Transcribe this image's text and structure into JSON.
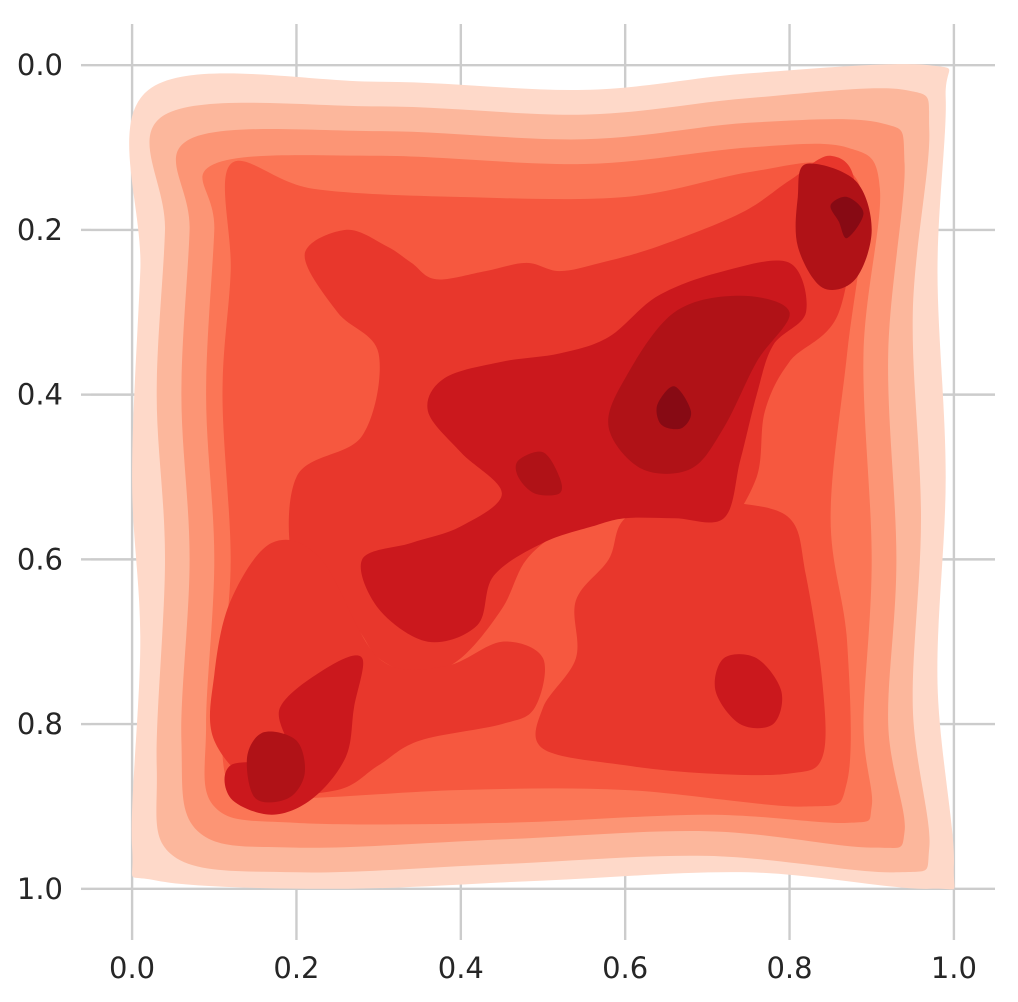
{
  "chart_data": {
    "type": "kde-filled-contour",
    "title": "",
    "xlabel": "",
    "ylabel": "",
    "xlim": [
      -0.05,
      1.05
    ],
    "ylim": [
      1.05,
      -0.05
    ],
    "y_inverted": true,
    "grid": true,
    "colormap": "Reds",
    "x_ticks": [
      0.0,
      0.2,
      0.4,
      0.6,
      0.8,
      1.0
    ],
    "x_tick_labels": [
      "0.0",
      "0.2",
      "0.4",
      "0.6",
      "0.8",
      "1.0"
    ],
    "y_ticks": [
      0.0,
      0.2,
      0.4,
      0.6,
      0.8,
      1.0
    ],
    "y_tick_labels": [
      "0.0",
      "0.2",
      "0.4",
      "0.6",
      "0.8",
      "1.0"
    ],
    "levels": [
      {
        "level": 1,
        "color": "#fed9c9",
        "x": [
          0.0,
          1.0
        ],
        "y": [
          0.0,
          1.0
        ]
      },
      {
        "level": 2,
        "color": "#fcb79c",
        "x": [
          0.03,
          0.97
        ],
        "y": [
          0.02,
          0.98
        ]
      },
      {
        "level": 3,
        "color": "#fc9575",
        "x": [
          0.06,
          0.94
        ],
        "y": [
          0.06,
          0.95
        ]
      },
      {
        "level": 4,
        "color": "#fb7656",
        "x": [
          0.09,
          0.91
        ],
        "y": [
          0.09,
          0.92
        ]
      },
      {
        "level": 5,
        "color": "#f6583f",
        "x": [
          0.12,
          0.89
        ],
        "y": [
          0.12,
          0.9
        ]
      },
      {
        "level": 6,
        "color": "#e8372c",
        "x": [
          0.2,
          0.84
        ],
        "y": [
          0.2,
          0.86
        ]
      },
      {
        "level": 7,
        "color": "#cb181d",
        "x": [
          0.28,
          0.82
        ],
        "y": [
          0.14,
          0.75
        ]
      },
      {
        "level": 8,
        "color": "#b01217",
        "x": [
          0.1,
          0.88
        ],
        "y": [
          0.15,
          0.9
        ]
      },
      {
        "level": 9,
        "color": "#870a14",
        "x": [
          0.14,
          0.88
        ],
        "y": [
          0.17,
          0.82
        ]
      }
    ],
    "density_peaks": [
      {
        "x": 0.87,
        "y": 0.18
      },
      {
        "x": 0.65,
        "y": 0.42
      },
      {
        "x": 0.17,
        "y": 0.84
      }
    ]
  }
}
